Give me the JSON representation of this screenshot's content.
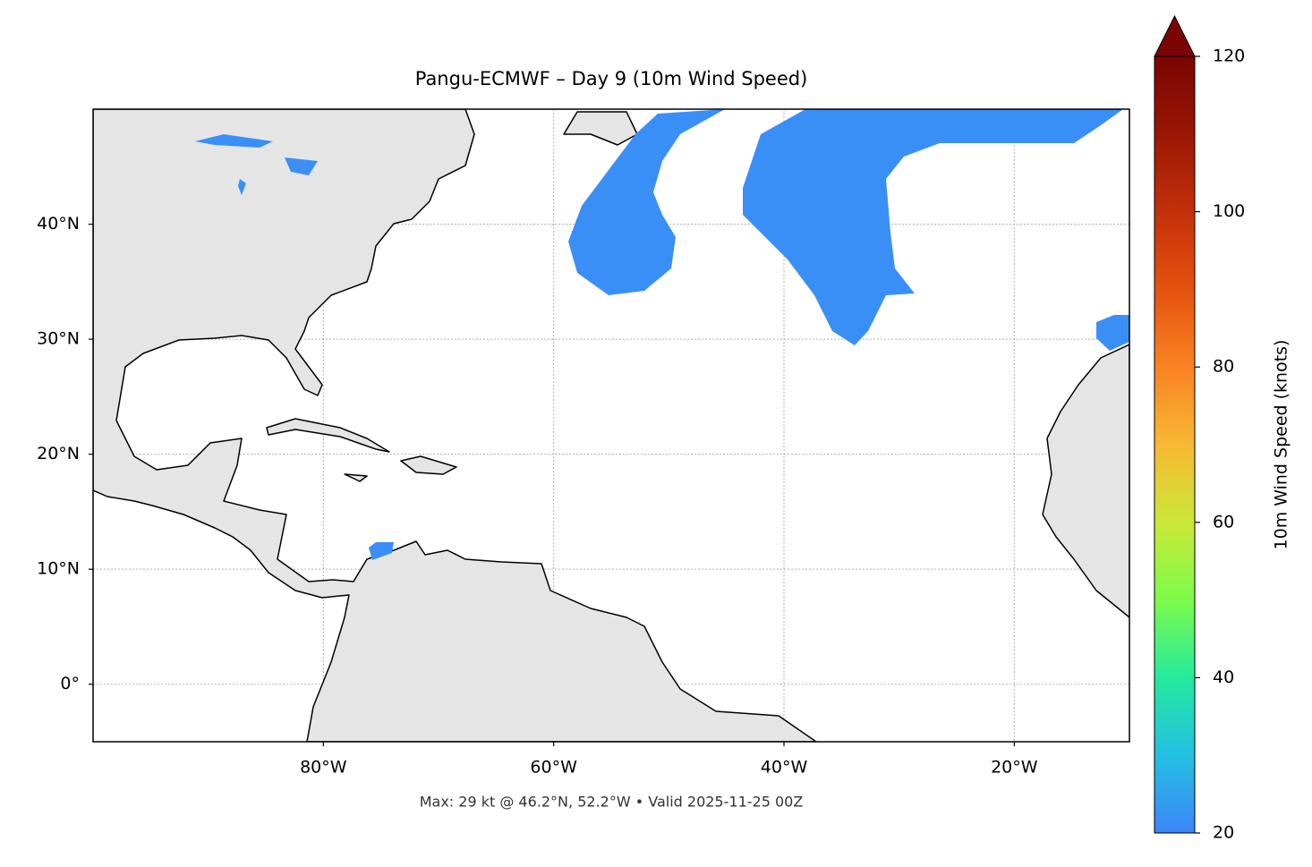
{
  "chart_data": {
    "type": "map",
    "title": "Pangu-ECMWF – Day 9 (10m Wind Speed)",
    "footer": "Max: 29 kt @ 46.2°N, 52.2°W • Valid 2025-11-25 00Z",
    "xlim": [
      -100,
      -10
    ],
    "ylim": [
      -5,
      50
    ],
    "xticks": [
      {
        "value": -80,
        "label": "80°W"
      },
      {
        "value": -60,
        "label": "60°W"
      },
      {
        "value": -40,
        "label": "40°W"
      },
      {
        "value": -20,
        "label": "20°W"
      }
    ],
    "yticks": [
      {
        "value": 0,
        "label": "0°"
      },
      {
        "value": 10,
        "label": "10°N"
      },
      {
        "value": 20,
        "label": "20°N"
      },
      {
        "value": 30,
        "label": "30°N"
      },
      {
        "value": 40,
        "label": "40°N"
      }
    ],
    "grid": true,
    "colorbar": {
      "label": "10m Wind Speed (knots)",
      "lim": [
        20,
        120
      ],
      "ticks": [
        20,
        40,
        60,
        80,
        100,
        120
      ]
    }
  }
}
